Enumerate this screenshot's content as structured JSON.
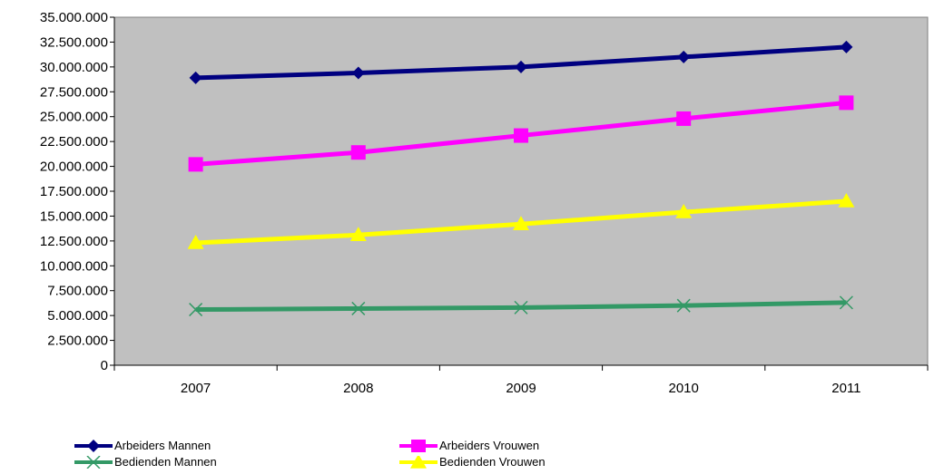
{
  "chart_data": {
    "type": "line",
    "categories": [
      "2007",
      "2008",
      "2009",
      "2010",
      "2011"
    ],
    "ylim": [
      0,
      35000000
    ],
    "yticks": [
      0,
      2500000,
      5000000,
      7500000,
      10000000,
      12500000,
      15000000,
      17500000,
      20000000,
      22500000,
      25000000,
      27500000,
      30000000,
      32500000,
      35000000
    ],
    "ytick_labels": [
      "0",
      "2.500.000",
      "5.000.000",
      "7.500.000",
      "10.000.000",
      "12.500.000",
      "15.000.000",
      "17.500.000",
      "20.000.000",
      "22.500.000",
      "25.000.000",
      "27.500.000",
      "30.000.000",
      "32.500.000",
      "35.000.000"
    ],
    "plot_background": "#c0c0c0",
    "grid": false,
    "legend_position": "bottom",
    "series": [
      {
        "name": "Arbeiders Mannen",
        "color": "#000080",
        "marker": "diamond",
        "values": [
          28900000,
          29400000,
          30000000,
          31000000,
          32000000
        ]
      },
      {
        "name": "Arbeiders Vrouwen",
        "color": "#ff00ff",
        "marker": "square",
        "values": [
          20200000,
          21400000,
          23100000,
          24800000,
          26400000
        ]
      },
      {
        "name": "Bedienden Mannen",
        "color": "#339966",
        "marker": "x",
        "values": [
          5600000,
          5700000,
          5800000,
          6000000,
          6300000
        ]
      },
      {
        "name": "Bedienden Vrouwen",
        "color": "#ffff00",
        "marker": "triangle",
        "values": [
          12300000,
          13100000,
          14200000,
          15400000,
          16500000
        ]
      }
    ]
  }
}
